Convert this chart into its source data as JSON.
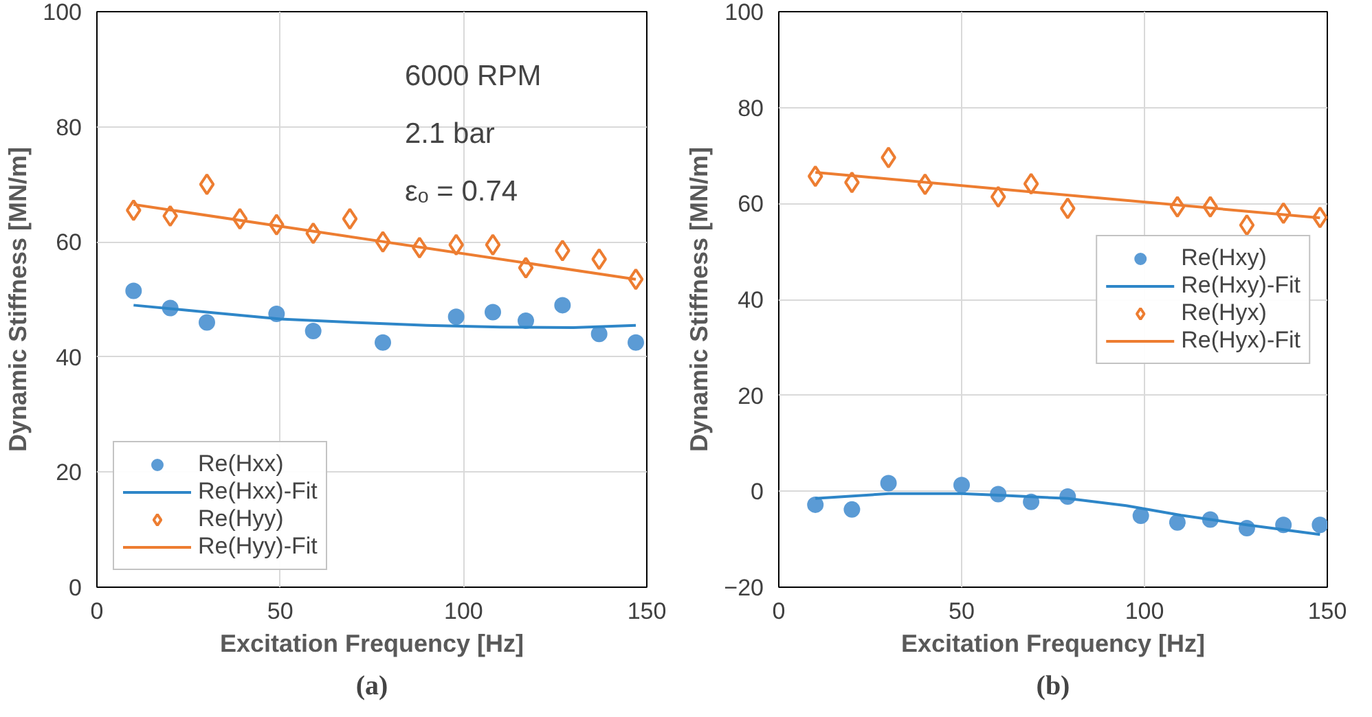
{
  "chart_data": [
    {
      "type": "scatter",
      "title": "(a)",
      "xlabel": "Excitation Frequency [Hz]",
      "ylabel": "Dynamic Stiffness [MN/m]",
      "xlim": [
        0,
        150
      ],
      "xticks": [
        0,
        50,
        100,
        150
      ],
      "ylim": [
        0,
        100
      ],
      "yticks": [
        0,
        20,
        40,
        60,
        80,
        100
      ],
      "grid": true,
      "legend": "bottom left",
      "annotations": [
        "6000 RPM",
        "2.1 bar",
        "εₒ = 0.74"
      ],
      "series": [
        {
          "name": "Re(Hxx)",
          "marker": "circle",
          "color": "#5b9bd5",
          "x": [
            10,
            20,
            30,
            49,
            59,
            78,
            98,
            108,
            117,
            127,
            137,
            147
          ],
          "values": [
            51.5,
            48.5,
            46,
            47.5,
            44.5,
            42.5,
            47,
            47.8,
            46.3,
            49,
            44,
            42.5
          ]
        },
        {
          "name": "Re(Hxx)-Fit",
          "type": "line",
          "marker": "none",
          "line_style": "solid",
          "color": "#2e86c8",
          "x": [
            10,
            30,
            50,
            70,
            90,
            110,
            130,
            147
          ],
          "values": [
            49,
            47.8,
            46.6,
            46,
            45.5,
            45.2,
            45.1,
            45.5
          ]
        },
        {
          "name": "Re(Hyy)",
          "marker": "diamond",
          "color": "#ed7d31",
          "x": [
            10,
            20,
            30,
            39,
            49,
            59,
            69,
            78,
            88,
            98,
            108,
            117,
            127,
            137,
            147
          ],
          "values": [
            65.5,
            64.5,
            70,
            64,
            63,
            61.5,
            64,
            60,
            59,
            59.5,
            59.5,
            55.5,
            58.5,
            57,
            53.5
          ]
        },
        {
          "name": "Re(Hyy)-Fit",
          "type": "line",
          "marker": "none",
          "line_style": "solid",
          "color": "#ed7d31",
          "x": [
            10,
            147
          ],
          "values": [
            66.5,
            53.5
          ]
        }
      ]
    },
    {
      "type": "scatter",
      "title": "(b)",
      "xlabel": "Excitation Frequency [Hz]",
      "ylabel": "Dynamic Stiffness [MN/m]",
      "xlim": [
        0,
        150
      ],
      "xticks": [
        0,
        50,
        100,
        150
      ],
      "ylim": [
        -20,
        100
      ],
      "yticks": [
        -20,
        0,
        20,
        40,
        60,
        80,
        100
      ],
      "grid": true,
      "legend": "right",
      "series": [
        {
          "name": "Re(Hxy)",
          "marker": "circle",
          "color": "#5b9bd5",
          "x": [
            10,
            20,
            30,
            50,
            60,
            69,
            79,
            99,
            109,
            118,
            128,
            138,
            148
          ],
          "values": [
            -2.8,
            -3.8,
            1.7,
            1.3,
            -0.6,
            -2.2,
            -1.1,
            -5.1,
            -6.5,
            -5.9,
            -7.7,
            -7,
            -7
          ]
        },
        {
          "name": "Re(Hxy)-Fit",
          "type": "line",
          "marker": "none",
          "line_style": "solid",
          "color": "#2e86c8",
          "x": [
            10,
            30,
            50,
            60,
            79,
            95,
            110,
            128,
            148
          ],
          "values": [
            -1.5,
            -0.5,
            -0.5,
            -0.8,
            -1.5,
            -3,
            -5,
            -7,
            -9
          ]
        },
        {
          "name": "Re(Hyx)",
          "marker": "diamond",
          "color": "#ed7d31",
          "x": [
            10,
            20,
            30,
            40,
            60,
            69,
            79,
            109,
            118,
            128,
            138,
            148
          ],
          "values": [
            65.7,
            64.4,
            69.6,
            64,
            61.4,
            64.1,
            59,
            59.3,
            59.3,
            55.5,
            58,
            57.1
          ]
        },
        {
          "name": "Re(Hyx)-Fit",
          "type": "line",
          "marker": "none",
          "line_style": "solid",
          "color": "#ed7d31",
          "x": [
            10,
            148
          ],
          "values": [
            66.5,
            57
          ]
        }
      ]
    }
  ]
}
